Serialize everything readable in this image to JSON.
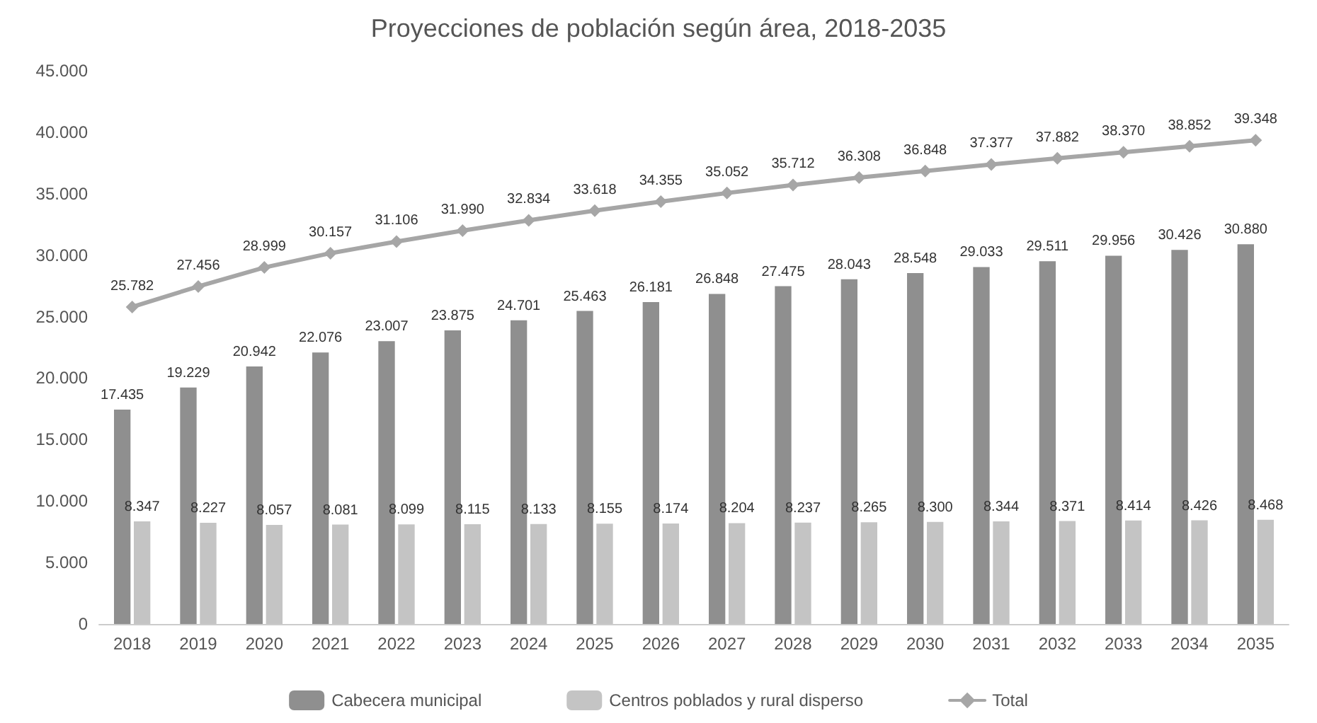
{
  "chart_data": {
    "type": "bar",
    "title": "Proyecciones de población según área, 2018-2035",
    "categories": [
      "2018",
      "2019",
      "2020",
      "2021",
      "2022",
      "2023",
      "2024",
      "2025",
      "2026",
      "2027",
      "2028",
      "2029",
      "2030",
      "2031",
      "2032",
      "2033",
      "2034",
      "2035"
    ],
    "series": [
      {
        "name": "Cabecera municipal",
        "color": "#8f8f8f",
        "values": [
          17435,
          19229,
          20942,
          22076,
          23007,
          23875,
          24701,
          25463,
          26181,
          26848,
          27475,
          28043,
          28548,
          29033,
          29511,
          29956,
          30426,
          30880
        ],
        "value_labels": [
          "17.435",
          "19.229",
          "20.942",
          "22.076",
          "23.007",
          "23.875",
          "24.701",
          "25.463",
          "26.181",
          "26.848",
          "27.475",
          "28.043",
          "28.548",
          "29.033",
          "29.511",
          "29.956",
          "30.426",
          "30.880"
        ]
      },
      {
        "name": "Centros poblados y rural disperso",
        "color": "#c4c4c4",
        "values": [
          8347,
          8227,
          8057,
          8081,
          8099,
          8115,
          8133,
          8155,
          8174,
          8204,
          8237,
          8265,
          8300,
          8344,
          8371,
          8414,
          8426,
          8468
        ],
        "value_labels": [
          "8.347",
          "8.227",
          "8.057",
          "8.081",
          "8.099",
          "8.115",
          "8.133",
          "8.155",
          "8.174",
          "8.204",
          "8.237",
          "8.265",
          "8.300",
          "8.344",
          "8.371",
          "8.414",
          "8.426",
          "8.468"
        ]
      },
      {
        "name": "Total",
        "type": "line",
        "color": "#a6a6a6",
        "marker": "diamond",
        "values": [
          25782,
          27456,
          28999,
          30157,
          31106,
          31990,
          32834,
          33618,
          34355,
          35052,
          35712,
          36308,
          36848,
          37377,
          37882,
          38370,
          38852,
          39348
        ],
        "value_labels": [
          "25.782",
          "27.456",
          "28.999",
          "30.157",
          "31.106",
          "31.990",
          "32.834",
          "33.618",
          "34.355",
          "35.052",
          "35.712",
          "36.308",
          "36.848",
          "37.377",
          "37.882",
          "38.370",
          "38.852",
          "39.348"
        ]
      }
    ],
    "ylim": [
      0,
      45000
    ],
    "yticks": [
      {
        "value": 0,
        "label": "0"
      },
      {
        "value": 5000,
        "label": "5.000"
      },
      {
        "value": 10000,
        "label": "10.000"
      },
      {
        "value": 15000,
        "label": "15.000"
      },
      {
        "value": 20000,
        "label": "20.000"
      },
      {
        "value": 25000,
        "label": "25.000"
      },
      {
        "value": 30000,
        "label": "30.000"
      },
      {
        "value": 35000,
        "label": "35.000"
      },
      {
        "value": 40000,
        "label": "40.000"
      },
      {
        "value": 45000,
        "label": "45.000"
      }
    ],
    "grid": false,
    "legend": "bottom"
  }
}
